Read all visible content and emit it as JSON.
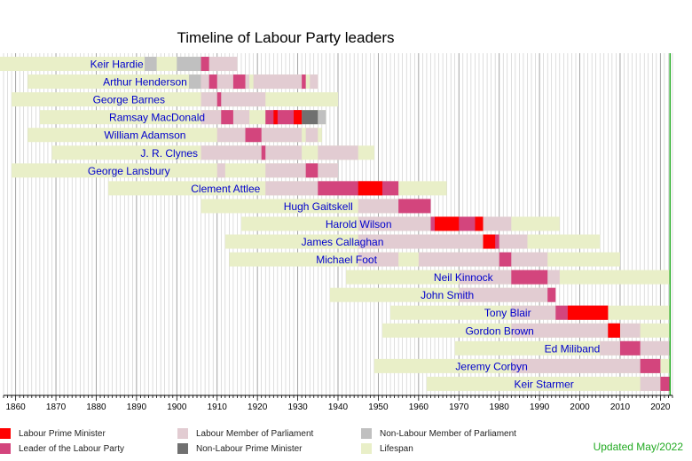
{
  "chart_data": {
    "type": "timeline",
    "title": "Timeline of Labour Party leaders",
    "xlim": [
      1857,
      2023
    ],
    "ticks": [
      1860,
      1870,
      1880,
      1890,
      1900,
      1910,
      1920,
      1930,
      1940,
      1950,
      1960,
      1970,
      1980,
      1990,
      2000,
      2010,
      2020
    ],
    "grid": true,
    "current_year": 2022.4,
    "colors": {
      "labour_pm": "#ff0000",
      "leader": "#d3457d",
      "labour_mp": "#e2ccd2",
      "non_labour_pm": "#707070",
      "non_labour_mp": "#c0c0c0",
      "lifespan": "#e9efc8"
    },
    "leaders": [
      {
        "name": "Keir Hardie",
        "born": 1856,
        "died": 1915,
        "periods": [
          {
            "type": "non_labour_mp",
            "start": 1892,
            "end": 1895
          },
          {
            "type": "non_labour_mp",
            "start": 1900,
            "end": 1906
          },
          {
            "type": "labour_mp",
            "start": 1906,
            "end": 1915
          },
          {
            "type": "leader",
            "start": 1906,
            "end": 1908
          }
        ]
      },
      {
        "name": "Arthur Henderson",
        "born": 1863,
        "died": 1935,
        "periods": [
          {
            "type": "non_labour_mp",
            "start": 1903,
            "end": 1906
          },
          {
            "type": "labour_mp",
            "start": 1906,
            "end": 1918
          },
          {
            "type": "labour_mp",
            "start": 1919,
            "end": 1931
          },
          {
            "type": "labour_mp",
            "start": 1933,
            "end": 1935
          },
          {
            "type": "leader",
            "start": 1908,
            "end": 1910
          },
          {
            "type": "leader",
            "start": 1914,
            "end": 1917
          },
          {
            "type": "leader",
            "start": 1931,
            "end": 1932
          }
        ]
      },
      {
        "name": "George Barnes",
        "born": 1859,
        "died": 1940,
        "periods": [
          {
            "type": "labour_mp",
            "start": 1906,
            "end": 1922
          },
          {
            "type": "leader",
            "start": 1910,
            "end": 1911
          }
        ]
      },
      {
        "name": "Ramsay MacDonald",
        "born": 1866,
        "died": 1937,
        "periods": [
          {
            "type": "labour_mp",
            "start": 1906,
            "end": 1918
          },
          {
            "type": "labour_mp",
            "start": 1922,
            "end": 1931
          },
          {
            "type": "leader",
            "start": 1911,
            "end": 1914
          },
          {
            "type": "leader",
            "start": 1922,
            "end": 1931
          },
          {
            "type": "labour_pm",
            "start": 1924,
            "end": 1925
          },
          {
            "type": "labour_pm",
            "start": 1929,
            "end": 1931
          },
          {
            "type": "non_labour_pm",
            "start": 1931,
            "end": 1935
          },
          {
            "type": "non_labour_mp",
            "start": 1935,
            "end": 1937
          }
        ]
      },
      {
        "name": "William Adamson",
        "born": 1863,
        "died": 1936,
        "periods": [
          {
            "type": "labour_mp",
            "start": 1910,
            "end": 1931
          },
          {
            "type": "labour_mp",
            "start": 1932,
            "end": 1935
          },
          {
            "type": "leader",
            "start": 1917,
            "end": 1921
          }
        ]
      },
      {
        "name": "J. R. Clynes",
        "born": 1869,
        "died": 1949,
        "periods": [
          {
            "type": "labour_mp",
            "start": 1906,
            "end": 1931
          },
          {
            "type": "labour_mp",
            "start": 1935,
            "end": 1945
          },
          {
            "type": "leader",
            "start": 1921,
            "end": 1922
          }
        ]
      },
      {
        "name": "George Lansbury",
        "born": 1859,
        "died": 1940,
        "periods": [
          {
            "type": "labour_mp",
            "start": 1910,
            "end": 1912
          },
          {
            "type": "labour_mp",
            "start": 1922,
            "end": 1940
          },
          {
            "type": "leader",
            "start": 1932,
            "end": 1935
          }
        ]
      },
      {
        "name": "Clement Attlee",
        "born": 1883,
        "died": 1967,
        "periods": [
          {
            "type": "labour_mp",
            "start": 1922,
            "end": 1955
          },
          {
            "type": "leader",
            "start": 1935,
            "end": 1955
          },
          {
            "type": "labour_pm",
            "start": 1945,
            "end": 1951
          }
        ]
      },
      {
        "name": "Hugh Gaitskell",
        "born": 1906,
        "died": 1963,
        "periods": [
          {
            "type": "labour_mp",
            "start": 1945,
            "end": 1963
          },
          {
            "type": "leader",
            "start": 1955,
            "end": 1963
          }
        ]
      },
      {
        "name": "Harold Wilson",
        "born": 1916,
        "died": 1995,
        "periods": [
          {
            "type": "labour_mp",
            "start": 1945,
            "end": 1983
          },
          {
            "type": "leader",
            "start": 1963,
            "end": 1976
          },
          {
            "type": "labour_pm",
            "start": 1964,
            "end": 1970
          },
          {
            "type": "labour_pm",
            "start": 1974,
            "end": 1976
          }
        ]
      },
      {
        "name": "James Callaghan",
        "born": 1912,
        "died": 2005,
        "periods": [
          {
            "type": "labour_mp",
            "start": 1945,
            "end": 1987
          },
          {
            "type": "leader",
            "start": 1976,
            "end": 1980
          },
          {
            "type": "labour_pm",
            "start": 1976,
            "end": 1979
          }
        ]
      },
      {
        "name": "Michael Foot",
        "born": 1913,
        "died": 2010,
        "periods": [
          {
            "type": "labour_mp",
            "start": 1945,
            "end": 1955
          },
          {
            "type": "labour_mp",
            "start": 1960,
            "end": 1992
          },
          {
            "type": "leader",
            "start": 1980,
            "end": 1983
          }
        ]
      },
      {
        "name": "Neil Kinnock",
        "born": 1942,
        "died": null,
        "periods": [
          {
            "type": "labour_mp",
            "start": 1970,
            "end": 1995
          },
          {
            "type": "leader",
            "start": 1983,
            "end": 1992
          }
        ]
      },
      {
        "name": "John Smith",
        "born": 1938,
        "died": 1994,
        "periods": [
          {
            "type": "labour_mp",
            "start": 1970,
            "end": 1994
          },
          {
            "type": "leader",
            "start": 1992,
            "end": 1994
          }
        ]
      },
      {
        "name": "Tony Blair",
        "born": 1953,
        "died": null,
        "periods": [
          {
            "type": "labour_mp",
            "start": 1983,
            "end": 2007
          },
          {
            "type": "leader",
            "start": 1994,
            "end": 2007
          },
          {
            "type": "labour_pm",
            "start": 1997,
            "end": 2007
          }
        ]
      },
      {
        "name": "Gordon Brown",
        "born": 1951,
        "died": null,
        "periods": [
          {
            "type": "labour_mp",
            "start": 1983,
            "end": 2015
          },
          {
            "type": "leader",
            "start": 2007,
            "end": 2010
          },
          {
            "type": "labour_pm",
            "start": 2007,
            "end": 2010
          }
        ]
      },
      {
        "name": "Ed Miliband",
        "born": 1969,
        "died": null,
        "periods": [
          {
            "type": "labour_mp",
            "start": 2005,
            "end": 2022.4
          },
          {
            "type": "leader",
            "start": 2010,
            "end": 2015
          }
        ]
      },
      {
        "name": "Jeremy Corbyn",
        "born": 1949,
        "died": null,
        "periods": [
          {
            "type": "labour_mp",
            "start": 1983,
            "end": 2020
          },
          {
            "type": "leader",
            "start": 2015,
            "end": 2020
          }
        ]
      },
      {
        "name": "Keir Starmer",
        "born": 1962,
        "died": null,
        "periods": [
          {
            "type": "labour_mp",
            "start": 2015,
            "end": 2020
          },
          {
            "type": "leader",
            "start": 2020,
            "end": 2022.4
          }
        ]
      }
    ],
    "legend": [
      {
        "key": "labour_pm",
        "label": "Labour Prime Minister"
      },
      {
        "key": "leader",
        "label": "Leader of the Labour Party"
      },
      {
        "key": "labour_mp",
        "label": "Labour Member of Parliament"
      },
      {
        "key": "non_labour_pm",
        "label": "Non-Labour Prime Minister"
      },
      {
        "key": "non_labour_mp",
        "label": "Non-Labour Member of Parliament"
      },
      {
        "key": "lifespan",
        "label": "Lifespan"
      }
    ],
    "updated": "Updated May/2022",
    "updated_color": "#22aa22",
    "name_color": "#0000cc"
  }
}
